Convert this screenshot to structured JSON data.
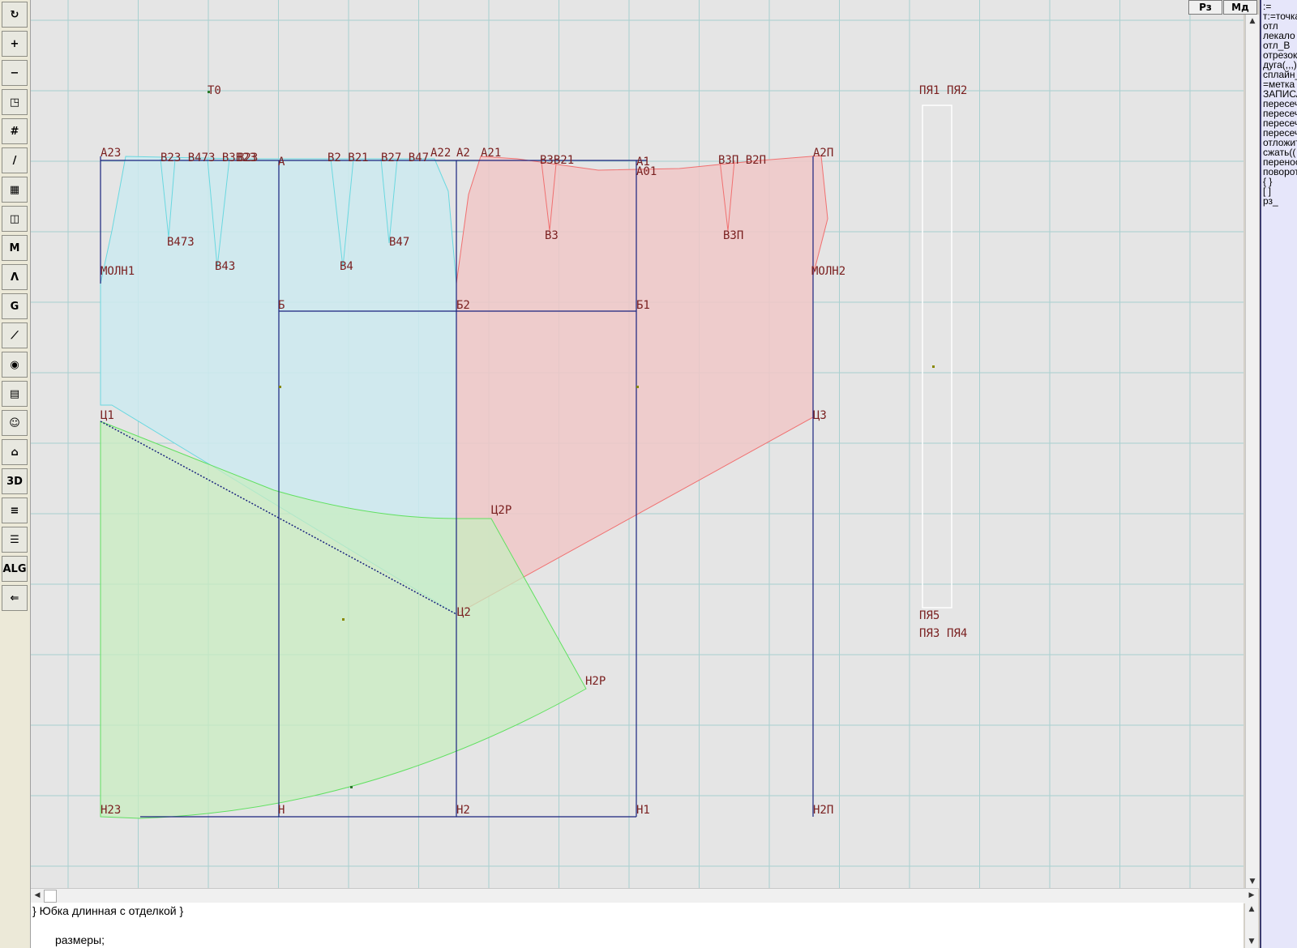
{
  "toolbar": {
    "tools": [
      {
        "name": "refresh-icon",
        "glyph": "↻"
      },
      {
        "name": "zoom-in-icon",
        "glyph": "+"
      },
      {
        "name": "zoom-out-icon",
        "glyph": "−"
      },
      {
        "name": "zoom-fit-icon",
        "glyph": "◳"
      },
      {
        "name": "grid-icon",
        "glyph": "#"
      },
      {
        "name": "line-tool-icon",
        "glyph": "/"
      },
      {
        "name": "map-icon",
        "glyph": "▦"
      },
      {
        "name": "pattern-piece-icon",
        "glyph": "◫"
      },
      {
        "name": "measure-m-icon",
        "glyph": "M"
      },
      {
        "name": "compass-icon",
        "glyph": "Λ"
      },
      {
        "name": "graph-g-icon",
        "glyph": "G"
      },
      {
        "name": "ruler-icon",
        "glyph": "⟋"
      },
      {
        "name": "camera-icon",
        "glyph": "◉"
      },
      {
        "name": "table-icon",
        "glyph": "▤"
      },
      {
        "name": "avatar-icon",
        "glyph": "☺"
      },
      {
        "name": "jacket-icon",
        "glyph": "⌂"
      },
      {
        "name": "view-3d-icon",
        "glyph": "3D"
      },
      {
        "name": "document-icon",
        "glyph": "≡"
      },
      {
        "name": "layers-icon",
        "glyph": "☰"
      },
      {
        "name": "alg-icon",
        "glyph": "ALG"
      },
      {
        "name": "exit-icon",
        "glyph": "⇐"
      }
    ]
  },
  "top_buttons": {
    "rz": "Рз",
    "md": "Мд"
  },
  "command_panel": {
    "items": [
      ":=",
      "т:=точка",
      "отл",
      "лекало",
      "отл_В",
      "отрезок",
      "дуга(,,,)",
      "сплайн_",
      "=метка",
      "ЗАПИСА",
      "пересеч",
      "пересеч",
      "пересеч",
      "пересеч",
      "отложит",
      "сжать((",
      "перенос",
      "поворот",
      "{ }",
      "[ ]",
      "рз_"
    ]
  },
  "code_editor": {
    "line1": "} Юбка длинная с отделкой }",
    "line2": "размеры;"
  },
  "colors": {
    "grid": "#a8d0d0",
    "front_fill": "#cdeaf0",
    "back_fill": "#f0c8c8",
    "hem_fill": "#c8ecc0",
    "construction": "#1a237e",
    "label": "#7a2020"
  },
  "drawing": {
    "labels": {
      "T0": "T0",
      "A23": "А23",
      "A": "А",
      "A2": "А2",
      "A21": "А21",
      "A22": "А22",
      "A1": "А1",
      "A01": "А01",
      "A2P": "А2П",
      "B_front_left": "В23 В473 В3В23",
      "B23b": "В23",
      "B_front_mid": "В2 В21",
      "B_mid2": "В27 В47",
      "B_back": "В3В21",
      "B_back2": "В3П В2П",
      "B473": "В473",
      "B43": "В43",
      "B4": "В4",
      "B47": "В47",
      "B3": "В3",
      "B3P": "В3П",
      "MOLN1": "МОЛН1",
      "MOLN2": "МОЛН2",
      "B": "Б",
      "B2": "Б2",
      "B1": "Б1",
      "C1": "Ц1",
      "C3": "Ц3",
      "C2": "Ц2",
      "C2P": "Ц2Р",
      "H2P": "Н2Р",
      "H23": "Н23",
      "H": "Н",
      "H2": "Н2",
      "H1": "Н1",
      "H2Pbot": "Н2П",
      "PYA1": "ПЯ1",
      "PYA2": "ПЯ2",
      "PYA5": "ПЯ5",
      "PYA3": "ПЯ3",
      "PYA4": "ПЯ4"
    }
  }
}
